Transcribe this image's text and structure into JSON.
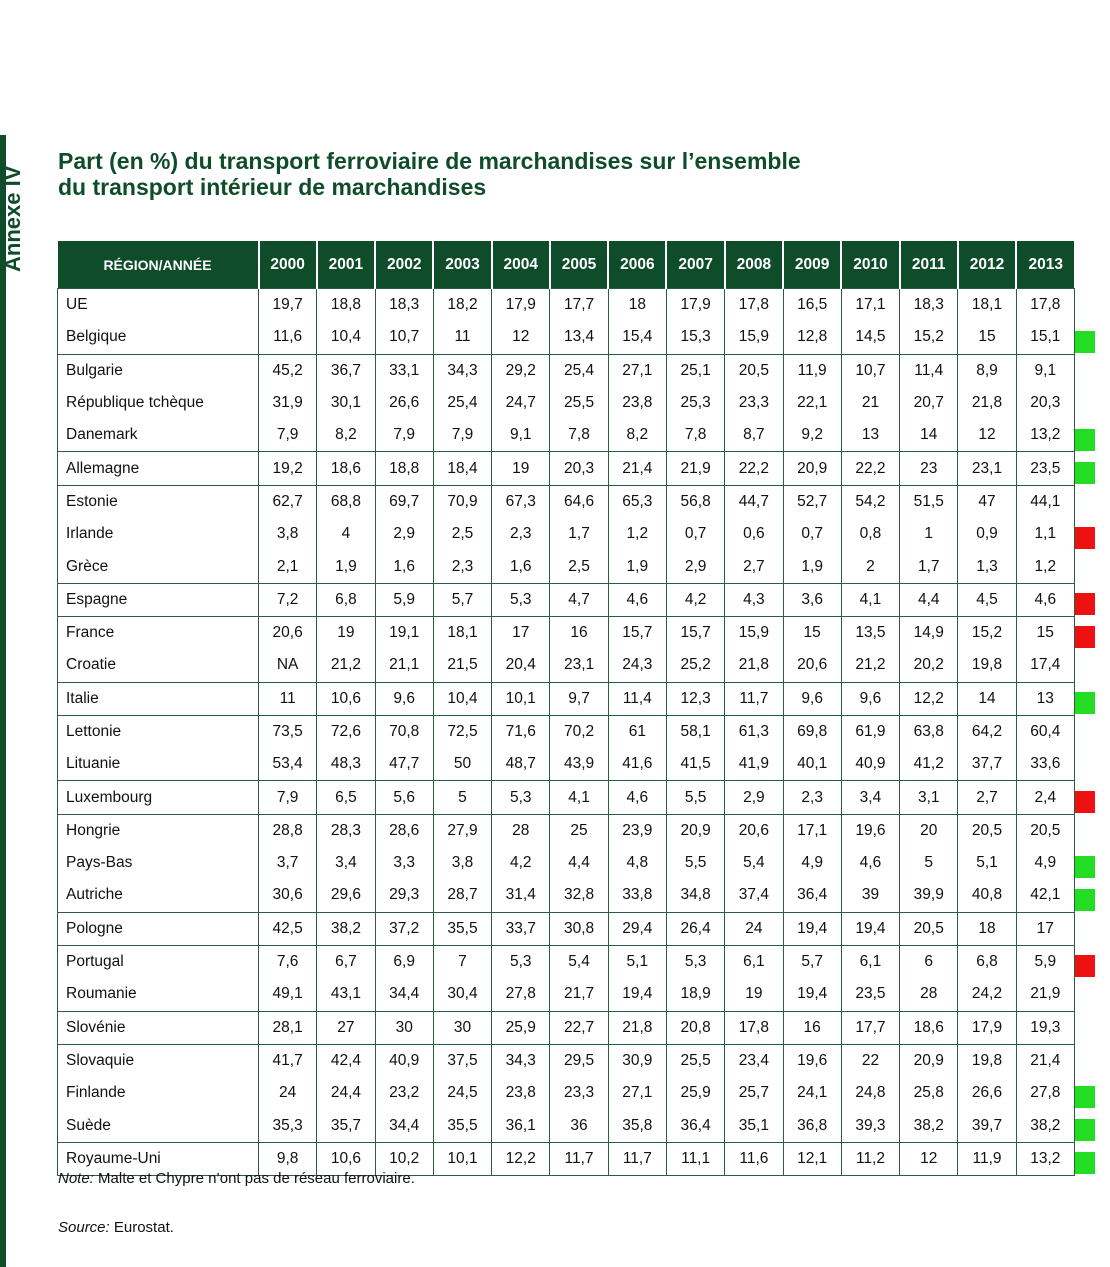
{
  "side_label": "Annexe IV",
  "title_lines": [
    "Part (en %) du transport ferroviaire de marchandises sur l’ensemble",
    "du transport intérieur de marchandises"
  ],
  "table": {
    "header_region": "RÉGION/ANNÉE",
    "years": [
      "2000",
      "2001",
      "2002",
      "2003",
      "2004",
      "2005",
      "2006",
      "2007",
      "2008",
      "2009",
      "2010",
      "2011",
      "2012",
      "2013"
    ],
    "rows": [
      {
        "region": "UE",
        "values": [
          "19,7",
          "18,8",
          "18,3",
          "18,2",
          "17,9",
          "17,7",
          "18",
          "17,9",
          "17,8",
          "16,5",
          "17,1",
          "18,3",
          "18,1",
          "17,8"
        ],
        "mark": ""
      },
      {
        "region": "Belgique",
        "values": [
          "11,6",
          "10,4",
          "10,7",
          "11",
          "12",
          "13,4",
          "15,4",
          "15,3",
          "15,9",
          "12,8",
          "14,5",
          "15,2",
          "15",
          "15,1"
        ],
        "mark": "green"
      },
      {
        "region": "Bulgarie",
        "values": [
          "45,2",
          "36,7",
          "33,1",
          "34,3",
          "29,2",
          "25,4",
          "27,1",
          "25,1",
          "20,5",
          "11,9",
          "10,7",
          "11,4",
          "8,9",
          "9,1"
        ],
        "mark": ""
      },
      {
        "region": "République tchèque",
        "values": [
          "31,9",
          "30,1",
          "26,6",
          "25,4",
          "24,7",
          "25,5",
          "23,8",
          "25,3",
          "23,3",
          "22,1",
          "21",
          "20,7",
          "21,8",
          "20,3"
        ],
        "mark": ""
      },
      {
        "region": "Danemark",
        "values": [
          "7,9",
          "8,2",
          "7,9",
          "7,9",
          "9,1",
          "7,8",
          "8,2",
          "7,8",
          "8,7",
          "9,2",
          "13",
          "14",
          "12",
          "13,2"
        ],
        "mark": "green"
      },
      {
        "region": "Allemagne",
        "values": [
          "19,2",
          "18,6",
          "18,8",
          "18,4",
          "19",
          "20,3",
          "21,4",
          "21,9",
          "22,2",
          "20,9",
          "22,2",
          "23",
          "23,1",
          "23,5"
        ],
        "mark": "green"
      },
      {
        "region": "Estonie",
        "values": [
          "62,7",
          "68,8",
          "69,7",
          "70,9",
          "67,3",
          "64,6",
          "65,3",
          "56,8",
          "44,7",
          "52,7",
          "54,2",
          "51,5",
          "47",
          "44,1"
        ],
        "mark": ""
      },
      {
        "region": "Irlande",
        "values": [
          "3,8",
          "4",
          "2,9",
          "2,5",
          "2,3",
          "1,7",
          "1,2",
          "0,7",
          "0,6",
          "0,7",
          "0,8",
          "1",
          "0,9",
          "1,1"
        ],
        "mark": "red"
      },
      {
        "region": "Grèce",
        "values": [
          "2,1",
          "1,9",
          "1,6",
          "2,3",
          "1,6",
          "2,5",
          "1,9",
          "2,9",
          "2,7",
          "1,9",
          "2",
          "1,7",
          "1,3",
          "1,2"
        ],
        "mark": ""
      },
      {
        "region": "Espagne",
        "values": [
          "7,2",
          "6,8",
          "5,9",
          "5,7",
          "5,3",
          "4,7",
          "4,6",
          "4,2",
          "4,3",
          "3,6",
          "4,1",
          "4,4",
          "4,5",
          "4,6"
        ],
        "mark": "red"
      },
      {
        "region": "France",
        "values": [
          "20,6",
          "19",
          "19,1",
          "18,1",
          "17",
          "16",
          "15,7",
          "15,7",
          "15,9",
          "15",
          "13,5",
          "14,9",
          "15,2",
          "15"
        ],
        "mark": "red"
      },
      {
        "region": "Croatie",
        "values": [
          "NA",
          "21,2",
          "21,1",
          "21,5",
          "20,4",
          "23,1",
          "24,3",
          "25,2",
          "21,8",
          "20,6",
          "21,2",
          "20,2",
          "19,8",
          "17,4"
        ],
        "mark": ""
      },
      {
        "region": "Italie",
        "values": [
          "11",
          "10,6",
          "9,6",
          "10,4",
          "10,1",
          "9,7",
          "11,4",
          "12,3",
          "11,7",
          "9,6",
          "9,6",
          "12,2",
          "14",
          "13"
        ],
        "mark": "green"
      },
      {
        "region": "Lettonie",
        "values": [
          "73,5",
          "72,6",
          "70,8",
          "72,5",
          "71,6",
          "70,2",
          "61",
          "58,1",
          "61,3",
          "69,8",
          "61,9",
          "63,8",
          "64,2",
          "60,4"
        ],
        "mark": ""
      },
      {
        "region": "Lituanie",
        "values": [
          "53,4",
          "48,3",
          "47,7",
          "50",
          "48,7",
          "43,9",
          "41,6",
          "41,5",
          "41,9",
          "40,1",
          "40,9",
          "41,2",
          "37,7",
          "33,6"
        ],
        "mark": ""
      },
      {
        "region": "Luxembourg",
        "values": [
          "7,9",
          "6,5",
          "5,6",
          "5",
          "5,3",
          "4,1",
          "4,6",
          "5,5",
          "2,9",
          "2,3",
          "3,4",
          "3,1",
          "2,7",
          "2,4"
        ],
        "mark": "red"
      },
      {
        "region": "Hongrie",
        "values": [
          "28,8",
          "28,3",
          "28,6",
          "27,9",
          "28",
          "25",
          "23,9",
          "20,9",
          "20,6",
          "17,1",
          "19,6",
          "20",
          "20,5",
          "20,5"
        ],
        "mark": ""
      },
      {
        "region": "Pays-Bas",
        "values": [
          "3,7",
          "3,4",
          "3,3",
          "3,8",
          "4,2",
          "4,4",
          "4,8",
          "5,5",
          "5,4",
          "4,9",
          "4,6",
          "5",
          "5,1",
          "4,9"
        ],
        "mark": "green"
      },
      {
        "region": "Autriche",
        "values": [
          "30,6",
          "29,6",
          "29,3",
          "28,7",
          "31,4",
          "32,8",
          "33,8",
          "34,8",
          "37,4",
          "36,4",
          "39",
          "39,9",
          "40,8",
          "42,1"
        ],
        "mark": "green"
      },
      {
        "region": "Pologne",
        "values": [
          "42,5",
          "38,2",
          "37,2",
          "35,5",
          "33,7",
          "30,8",
          "29,4",
          "26,4",
          "24",
          "19,4",
          "19,4",
          "20,5",
          "18",
          "17"
        ],
        "mark": ""
      },
      {
        "region": "Portugal",
        "values": [
          "7,6",
          "6,7",
          "6,9",
          "7",
          "5,3",
          "5,4",
          "5,1",
          "5,3",
          "6,1",
          "5,7",
          "6,1",
          "6",
          "6,8",
          "5,9"
        ],
        "mark": "red"
      },
      {
        "region": "Roumanie",
        "values": [
          "49,1",
          "43,1",
          "34,4",
          "30,4",
          "27,8",
          "21,7",
          "19,4",
          "18,9",
          "19",
          "19,4",
          "23,5",
          "28",
          "24,2",
          "21,9"
        ],
        "mark": ""
      },
      {
        "region": "Slovénie",
        "values": [
          "28,1",
          "27",
          "30",
          "30",
          "25,9",
          "22,7",
          "21,8",
          "20,8",
          "17,8",
          "16",
          "17,7",
          "18,6",
          "17,9",
          "19,3"
        ],
        "mark": ""
      },
      {
        "region": "Slovaquie",
        "values": [
          "41,7",
          "42,4",
          "40,9",
          "37,5",
          "34,3",
          "29,5",
          "30,9",
          "25,5",
          "23,4",
          "19,6",
          "22",
          "20,9",
          "19,8",
          "21,4"
        ],
        "mark": ""
      },
      {
        "region": "Finlande",
        "values": [
          "24",
          "24,4",
          "23,2",
          "24,5",
          "23,8",
          "23,3",
          "27,1",
          "25,9",
          "25,7",
          "24,1",
          "24,8",
          "25,8",
          "26,6",
          "27,8"
        ],
        "mark": "green"
      },
      {
        "region": "Suède",
        "values": [
          "35,3",
          "35,7",
          "34,4",
          "35,5",
          "36,1",
          "36",
          "35,8",
          "36,4",
          "35,1",
          "36,8",
          "39,3",
          "38,2",
          "39,7",
          "38,2"
        ],
        "mark": "green"
      },
      {
        "region": "Royaume-Uni",
        "values": [
          "9,8",
          "10,6",
          "10,2",
          "10,1",
          "12,2",
          "11,7",
          "11,7",
          "11,1",
          "11,6",
          "12,1",
          "11,2",
          "12",
          "11,9",
          "13,2"
        ],
        "mark": "green"
      }
    ]
  },
  "note": {
    "label": "Note:",
    "text": " Malte et Chypre n’ont pas de réseau ferroviaire."
  },
  "source": {
    "label": "Source:",
    "text": " Eurostat."
  },
  "colors": {
    "primary": "#0f4d2a",
    "mark_green": "#22dd22",
    "mark_red": "#ee1111"
  }
}
